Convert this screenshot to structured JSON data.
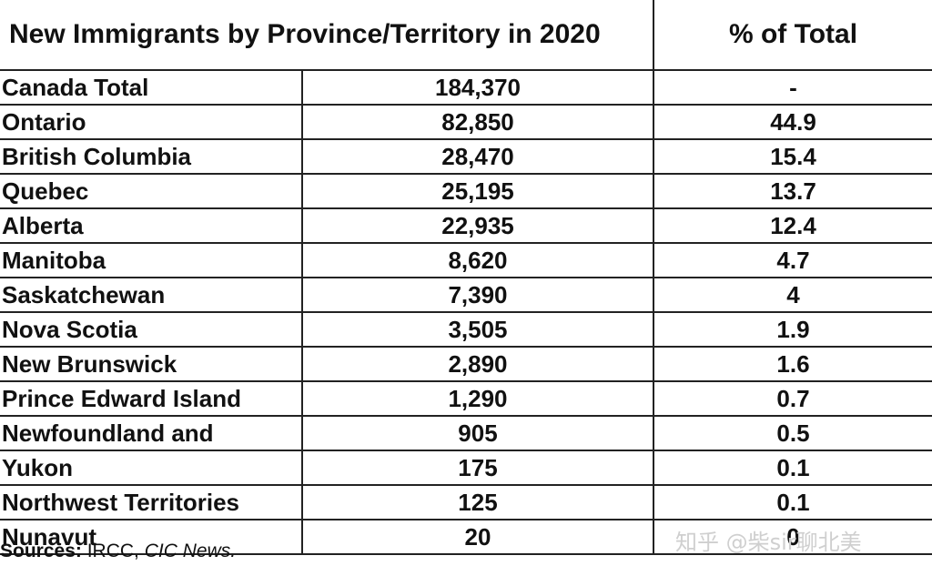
{
  "chart_data": {
    "type": "table",
    "columns": [
      "New Immigrants by Province/Territory in 2020",
      "",
      "% of Total"
    ],
    "rows": [
      {
        "province": "Canada Total",
        "immigrants": "184,370",
        "percent": "-"
      },
      {
        "province": "Ontario",
        "immigrants": "82,850",
        "percent": "44.9"
      },
      {
        "province": "British Columbia",
        "immigrants": "28,470",
        "percent": "15.4"
      },
      {
        "province": "Quebec",
        "immigrants": "25,195",
        "percent": "13.7"
      },
      {
        "province": "Alberta",
        "immigrants": "22,935",
        "percent": "12.4"
      },
      {
        "province": "Manitoba",
        "immigrants": "8,620",
        "percent": "4.7"
      },
      {
        "province": "Saskatchewan",
        "immigrants": "7,390",
        "percent": "4"
      },
      {
        "province": "Nova Scotia",
        "immigrants": "3,505",
        "percent": "1.9"
      },
      {
        "province": "New Brunswick",
        "immigrants": "2,890",
        "percent": "1.6"
      },
      {
        "province": "Prince Edward Island",
        "immigrants": "1,290",
        "percent": "0.7"
      },
      {
        "province": "Newfoundland and",
        "immigrants": "905",
        "percent": "0.5"
      },
      {
        "province": "Yukon",
        "immigrants": "175",
        "percent": "0.1"
      },
      {
        "province": "Northwest Territories",
        "immigrants": "125",
        "percent": "0.1"
      },
      {
        "province": "Nunavut",
        "immigrants": "20",
        "percent": "0"
      }
    ]
  },
  "source": {
    "label": "Sources:",
    "text": " IRCC, ",
    "italic": "CIC News."
  },
  "watermark": "知乎 @柴sir聊北美"
}
